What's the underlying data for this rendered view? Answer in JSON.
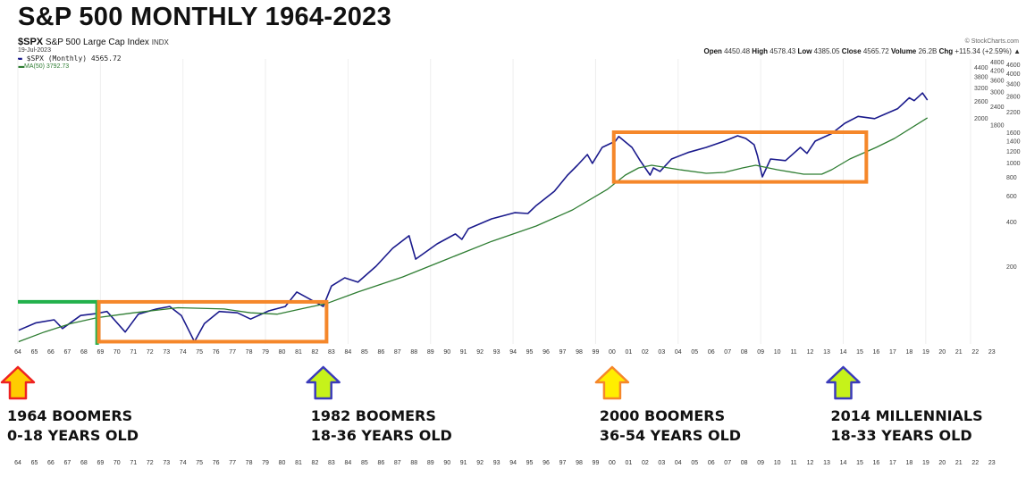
{
  "page_title": "S&P 500 MONTHLY 1964-2023",
  "header": {
    "symbol": "$SPX",
    "name": "S&P 500 Large Cap Index",
    "exchange": "INDX",
    "date": "19-Jul-2023",
    "legend_price": "$SPX (Monthly) 4565.72",
    "legend_ma": "MA(50) 3792.73",
    "credit": "© StockCharts.com",
    "ohlc": [
      {
        "label": "Open",
        "value": "4450.48"
      },
      {
        "label": "High",
        "value": "4578.43"
      },
      {
        "label": "Low",
        "value": "4385.05"
      },
      {
        "label": "Close",
        "value": "4565.72"
      },
      {
        "label": "Volume",
        "value": "26.2B"
      },
      {
        "label": "Chg",
        "value": "+115.34 (+2.59%) ▲"
      }
    ]
  },
  "colors": {
    "price": "#1a1a8c",
    "ma": "#2e7d32",
    "box": "#f5872a",
    "bracket": "#22b14c"
  },
  "annotations": [
    {
      "line1": "1964 BOOMERS",
      "line2": "0-18 YEARS OLD",
      "year": 1964,
      "arrow_fill": "#ffcc00",
      "arrow_stroke": "#ee2222"
    },
    {
      "line1": "1982 BOOMERS",
      "line2": "18-36 YEARS OLD",
      "year": 1982.5,
      "arrow_fill": "#c6f21a",
      "arrow_stroke": "#3b3bbb"
    },
    {
      "line1": "2000 BOOMERS",
      "line2": "36-54 YEARS OLD",
      "year": 2000,
      "arrow_fill": "#ffee00",
      "arrow_stroke": "#f5872a"
    },
    {
      "line1": "2014 MILLENNIALS",
      "line2": "18-33 YEARS OLD",
      "year": 2014,
      "arrow_fill": "#c6f21a",
      "arrow_stroke": "#3b3bbb"
    }
  ],
  "chart_data": {
    "type": "line",
    "title": "S&P 500 MONTHLY 1964-2023",
    "yscale": "log",
    "ylim": [
      60,
      5000
    ],
    "xlim": [
      1964,
      2023.5
    ],
    "x_tick_labels": [
      "64",
      "65",
      "66",
      "67",
      "68",
      "69",
      "70",
      "71",
      "72",
      "73",
      "74",
      "75",
      "76",
      "77",
      "78",
      "79",
      "80",
      "81",
      "82",
      "83",
      "84",
      "85",
      "86",
      "87",
      "88",
      "89",
      "90",
      "91",
      "92",
      "93",
      "94",
      "95",
      "96",
      "97",
      "98",
      "99",
      "00",
      "01",
      "02",
      "03",
      "04",
      "05",
      "06",
      "07",
      "08",
      "09",
      "10",
      "11",
      "12",
      "13",
      "14",
      "15",
      "16",
      "17",
      "18",
      "19",
      "20",
      "21",
      "22",
      "23"
    ],
    "y_ticks": [
      200,
      400,
      600,
      800,
      1000,
      1200,
      1400,
      1600,
      1800,
      2000,
      2200,
      2400,
      2600,
      2800,
      3000,
      3200,
      3400,
      3600,
      3800,
      4000,
      4200,
      4400,
      4600,
      4800
    ],
    "grid": true,
    "legend": "top-left",
    "boxes": [
      {
        "type": "bracket",
        "x": [
          1964,
          1968.8
        ],
        "y_top": 115
      },
      {
        "type": "box",
        "x": [
          1968.9,
          1982.7
        ],
        "y": [
          62,
          115
        ]
      },
      {
        "type": "box",
        "x": [
          2000.1,
          2015.4
        ],
        "y": [
          740,
          1600
        ]
      }
    ],
    "series": [
      {
        "name": "$SPX (Monthly)",
        "x": [
          1964.05,
          1965.1,
          1966.2,
          1966.7,
          1967.8,
          1968.8,
          1969.4,
          1970.5,
          1971.3,
          1972.4,
          1973.2,
          1973.9,
          1974.7,
          1975.3,
          1976.2,
          1977.3,
          1978.1,
          1979.2,
          1980.2,
          1980.9,
          1981.8,
          1982.5,
          1983.0,
          1983.8,
          1984.6,
          1985.7,
          1986.7,
          1987.7,
          1988.1,
          1989.4,
          1990.5,
          1990.9,
          1991.3,
          1992.7,
          1994.1,
          1994.9,
          1995.4,
          1996.5,
          1997.3,
          1997.9,
          1998.5,
          1998.8,
          1999.4,
          2000.2,
          2000.4,
          2001.2,
          2001.7,
          2002.3,
          2002.5,
          2002.9,
          2003.6,
          2004.6,
          2005.7,
          2006.8,
          2007.6,
          2008.1,
          2008.6,
          2008.8,
          2009.1,
          2009.6,
          2010.5,
          2011.4,
          2011.8,
          2012.3,
          2013.3,
          2014.1,
          2014.9,
          2015.9,
          2016.5,
          2017.3,
          2018.0,
          2018.3,
          2018.8,
          2019.1
        ],
        "values": [
          74,
          83,
          87,
          76,
          93,
          96,
          99,
          72,
          95,
          103,
          107,
          93,
          62,
          82,
          99,
          97,
          88,
          100,
          107,
          134,
          118,
          107,
          147,
          167,
          156,
          200,
          264,
          321,
          223,
          283,
          330,
          303,
          358,
          417,
          459,
          453,
          513,
          640,
          822,
          958,
          1131,
          986,
          1264,
          1393,
          1497,
          1264,
          1029,
          822,
          919,
          870,
          1056,
          1168,
          1264,
          1393,
          1514,
          1453,
          1317,
          1115,
          800,
          1056,
          1029,
          1264,
          1152,
          1393,
          1566,
          1838,
          2045,
          1975,
          2111,
          2306,
          2729,
          2609,
          2940,
          2633
        ]
      },
      {
        "name": "MA(50)",
        "x": [
          1964.05,
          1965.6,
          1967.2,
          1968.8,
          1971.0,
          1973.7,
          1976.5,
          1978.1,
          1979.7,
          1981.3,
          1982.7,
          1984.6,
          1987.3,
          1990.0,
          1992.7,
          1995.4,
          1997.6,
          1999.7,
          2000.8,
          2001.6,
          2002.4,
          2004.1,
          2005.7,
          2006.8,
          2007.9,
          2008.7,
          2010.0,
          2011.6,
          2012.7,
          2013.3,
          2014.4,
          2016.0,
          2017.1,
          2019.1
        ],
        "values": [
          62,
          72,
          82,
          90,
          97,
          105,
          103,
          97,
          95,
          104,
          112,
          134,
          169,
          223,
          294,
          373,
          479,
          658,
          822,
          919,
          958,
          894,
          846,
          858,
          919,
          958,
          894,
          834,
          834,
          894,
          1056,
          1264,
          1453,
          2000
        ]
      }
    ]
  }
}
